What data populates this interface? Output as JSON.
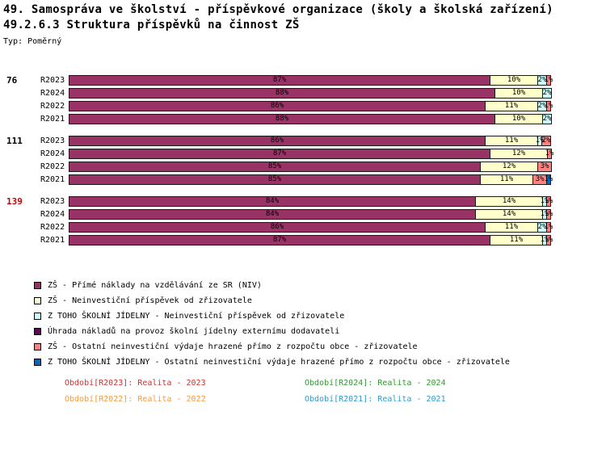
{
  "title1": "49. Samospráva ve školství - příspěvkové organizace (školy a školská zařízení)",
  "title2": "49.2.6.3 Struktura příspěvků na činnost ZŠ",
  "type_label": "Typ: Poměrný",
  "chart_data": {
    "type": "bar",
    "orientation": "horizontal",
    "stacked": true,
    "value_unit": "%",
    "xlim": [
      0,
      100
    ],
    "legend": [
      {
        "key": "niv",
        "label": "ZŠ - Přímé náklady na vzdělávání ze SR (NIV)",
        "color": "#993366"
      },
      {
        "key": "prispevek",
        "label": "ZŠ - Neinvestiční příspěvek od zřizovatele",
        "color": "#FFFFCC"
      },
      {
        "key": "jidelna-prispevek",
        "label": "Z TOHO ŠKOLNÍ JÍDELNY - Neinvestiční příspěvek od zřizovatele",
        "color": "#CCFFFF"
      },
      {
        "key": "externi-dodavatel",
        "label": "Úhrada nákladů na provoz školní jídelny externímu dodavateli",
        "color": "#660066"
      },
      {
        "key": "ostatni",
        "label": "ZŠ - Ostatní neinvestiční výdaje hrazené přímo z rozpočtu obce - zřizovatele",
        "color": "#FF8080"
      },
      {
        "key": "jidelna-ostatni",
        "label": "Z TOHO ŠKOLNÍ JÍDELNY - Ostatní neinvestiční výdaje hrazené přímo z rozpočtu obce - zřizovatele",
        "color": "#0066CC"
      }
    ],
    "groups": [
      {
        "label": "76",
        "label_color": "#000000",
        "rows": [
          {
            "period": "R2023",
            "segments": [
              {
                "series": 0,
                "value": 87,
                "label": "87%"
              },
              {
                "series": 1,
                "value": 10,
                "label": "10%"
              },
              {
                "series": 2,
                "value": 2,
                "label": "2%"
              },
              {
                "series": 4,
                "value": 1,
                "label": "1%"
              }
            ]
          },
          {
            "period": "R2024",
            "segments": [
              {
                "series": 0,
                "value": 88,
                "label": "88%"
              },
              {
                "series": 1,
                "value": 10,
                "label": "10%"
              },
              {
                "series": 2,
                "value": 2,
                "label": "2%"
              }
            ]
          },
          {
            "period": "R2022",
            "segments": [
              {
                "series": 0,
                "value": 86,
                "label": "86%"
              },
              {
                "series": 1,
                "value": 11,
                "label": "11%"
              },
              {
                "series": 2,
                "value": 2,
                "label": "2%"
              },
              {
                "series": 4,
                "value": 1,
                "label": "1%"
              }
            ]
          },
          {
            "period": "R2021",
            "segments": [
              {
                "series": 0,
                "value": 88,
                "label": "88%"
              },
              {
                "series": 1,
                "value": 10,
                "label": "10%"
              },
              {
                "series": 2,
                "value": 2,
                "label": "2%"
              }
            ]
          }
        ]
      },
      {
        "label": "111",
        "label_color": "#000000",
        "rows": [
          {
            "period": "R2023",
            "segments": [
              {
                "series": 0,
                "value": 86,
                "label": "86%"
              },
              {
                "series": 1,
                "value": 11,
                "label": "11%"
              },
              {
                "series": 2,
                "value": 1,
                "label": "1%"
              },
              {
                "series": 4,
                "value": 2,
                "label": "2%"
              }
            ]
          },
          {
            "period": "R2024",
            "segments": [
              {
                "series": 0,
                "value": 87,
                "label": "87%"
              },
              {
                "series": 1,
                "value": 12,
                "label": "12%"
              },
              {
                "series": 4,
                "value": 1,
                "label": "1%"
              }
            ]
          },
          {
            "period": "R2022",
            "segments": [
              {
                "series": 0,
                "value": 85,
                "label": "85%"
              },
              {
                "series": 1,
                "value": 12,
                "label": "12%"
              },
              {
                "series": 4,
                "value": 3,
                "label": "3%"
              }
            ]
          },
          {
            "period": "R2021",
            "segments": [
              {
                "series": 0,
                "value": 85,
                "label": "85%"
              },
              {
                "series": 1,
                "value": 11,
                "label": "11%"
              },
              {
                "series": 4,
                "value": 3,
                "label": "3%"
              },
              {
                "series": 5,
                "value": 1,
                "label": "1%"
              }
            ]
          }
        ]
      },
      {
        "label": "139",
        "label_color": "#CC0000",
        "rows": [
          {
            "period": "R2023",
            "segments": [
              {
                "series": 0,
                "value": 84,
                "label": "84%"
              },
              {
                "series": 1,
                "value": 14,
                "label": "14%"
              },
              {
                "series": 2,
                "value": 1,
                "label": "1%"
              },
              {
                "series": 4,
                "value": 1,
                "label": "1%"
              }
            ]
          },
          {
            "period": "R2024",
            "segments": [
              {
                "series": 0,
                "value": 84,
                "label": "84%"
              },
              {
                "series": 1,
                "value": 14,
                "label": "14%"
              },
              {
                "series": 2,
                "value": 1,
                "label": "1%"
              },
              {
                "series": 4,
                "value": 1,
                "label": "1%"
              }
            ]
          },
          {
            "period": "R2022",
            "segments": [
              {
                "series": 0,
                "value": 86,
                "label": "86%"
              },
              {
                "series": 1,
                "value": 11,
                "label": "11%"
              },
              {
                "series": 2,
                "value": 2,
                "label": "2%"
              },
              {
                "series": 4,
                "value": 1,
                "label": "1%"
              }
            ]
          },
          {
            "period": "R2021",
            "segments": [
              {
                "series": 0,
                "value": 87,
                "label": "87%"
              },
              {
                "series": 1,
                "value": 11,
                "label": "11%"
              },
              {
                "series": 2,
                "value": 1,
                "label": "1%"
              },
              {
                "series": 4,
                "value": 1,
                "label": "1%"
              }
            ]
          }
        ]
      }
    ]
  },
  "footer": [
    {
      "label": "Období[R2023]: Realita - 2023",
      "color": "#CC3333"
    },
    {
      "label": "Období[R2024]: Realita - 2024",
      "color": "#339933"
    },
    {
      "label": "Období[R2022]: Realita - 2022",
      "color": "#FF9933"
    },
    {
      "label": "Období[R2021]: Realita - 2021",
      "color": "#3399CC"
    }
  ]
}
